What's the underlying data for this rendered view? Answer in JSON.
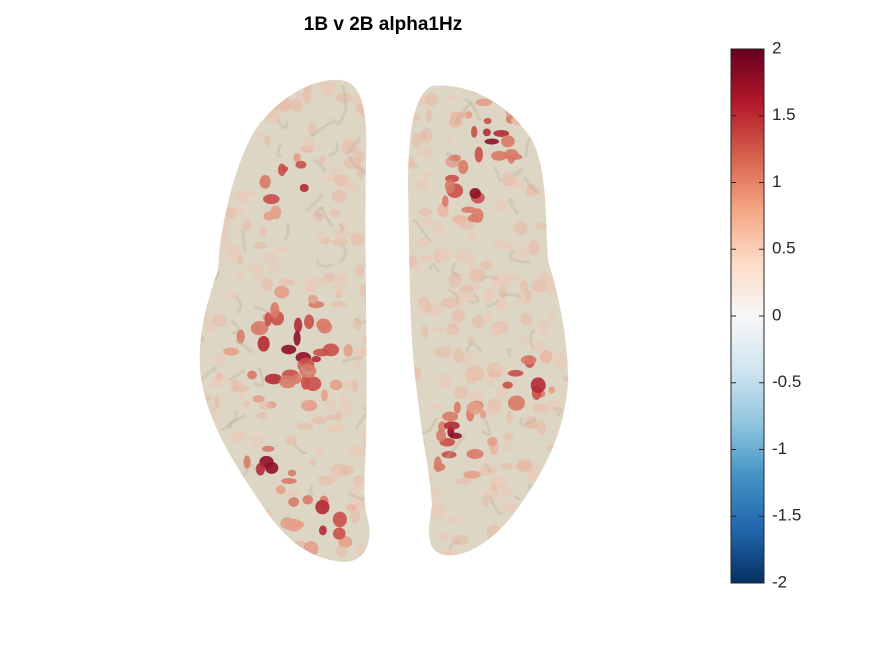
{
  "chart_data": {
    "type": "surface",
    "title": "1B v 2B alpha1Hz",
    "colormap": [
      "#053061",
      "#2166ac",
      "#4393c3",
      "#92c5de",
      "#d1e5f0",
      "#f7f7f7",
      "#fddbc7",
      "#f4a582",
      "#d6604d",
      "#b2182b",
      "#67001f"
    ],
    "clim": [
      -2,
      2
    ],
    "cticks": [
      -2,
      -1.5,
      -1,
      -0.5,
      0,
      0.5,
      1,
      1.5,
      2
    ]
  }
}
